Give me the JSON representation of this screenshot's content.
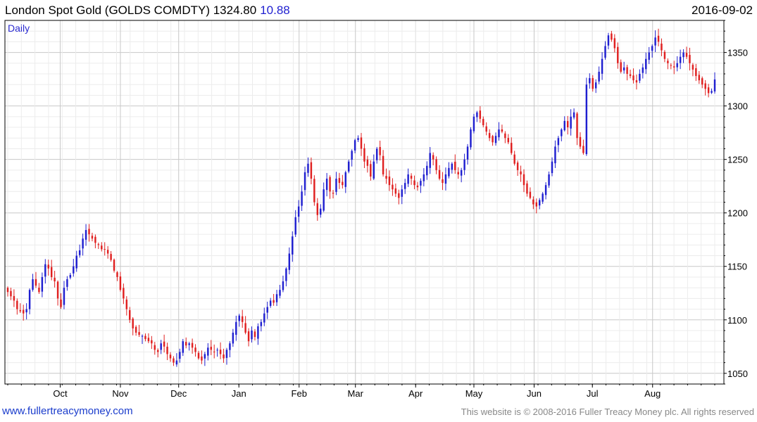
{
  "header": {
    "title": "London Spot Gold (GOLDS COMDTY) 1324.80",
    "change": "10.88",
    "date": "2016-09-02"
  },
  "footer": {
    "site": "www.fullertreacymoney.com",
    "copyright": "This website is © 2008-2016 Fuller Treacy Money plc. All rights reserved"
  },
  "colors": {
    "up": "#1f1fd0",
    "down": "#e02020",
    "grid": "#c8c8c8",
    "gridMinor": "#ececec"
  },
  "chart_data": {
    "type": "candlestick",
    "period_label": "Daily",
    "ylim": [
      1040,
      1380
    ],
    "y_ticks": [
      1050,
      1100,
      1150,
      1200,
      1250,
      1300,
      1350
    ],
    "y_tick_labels": [
      "1050",
      "1100",
      "1150",
      "1200",
      "1250",
      "1300",
      "1350"
    ],
    "x_range": [
      "2015-09-04",
      "2016-09-02"
    ],
    "x_ticks": [
      {
        "date": "2015-10-01",
        "label": "Oct"
      },
      {
        "date": "2015-11-01",
        "label": "Nov"
      },
      {
        "date": "2015-12-01",
        "label": "Dec"
      },
      {
        "date": "2016-01-01",
        "label": "Jan"
      },
      {
        "date": "2016-02-01",
        "label": "Feb"
      },
      {
        "date": "2016-03-01",
        "label": "Mar"
      },
      {
        "date": "2016-04-01",
        "label": "Apr"
      },
      {
        "date": "2016-05-01",
        "label": "May"
      },
      {
        "date": "2016-06-01",
        "label": "Jun"
      },
      {
        "date": "2016-07-01",
        "label": "Jul"
      },
      {
        "date": "2016-08-01",
        "label": "Aug"
      }
    ],
    "closes": [
      1126,
      1122,
      1118,
      1110,
      1108,
      1106,
      1110,
      1128,
      1138,
      1132,
      1126,
      1140,
      1152,
      1148,
      1140,
      1136,
      1120,
      1112,
      1130,
      1138,
      1142,
      1150,
      1160,
      1165,
      1176,
      1184,
      1180,
      1176,
      1172,
      1170,
      1166,
      1166,
      1162,
      1156,
      1146,
      1140,
      1128,
      1120,
      1110,
      1100,
      1092,
      1088,
      1086,
      1085,
      1082,
      1080,
      1078,
      1072,
      1070,
      1078,
      1075,
      1068,
      1064,
      1060,
      1062,
      1070,
      1080,
      1076,
      1078,
      1074,
      1070,
      1064,
      1062,
      1068,
      1074,
      1072,
      1070,
      1072,
      1068,
      1064,
      1072,
      1078,
      1088,
      1098,
      1104,
      1098,
      1088,
      1080,
      1090,
      1084,
      1094,
      1098,
      1106,
      1112,
      1118,
      1116,
      1124,
      1128,
      1136,
      1148,
      1162,
      1178,
      1196,
      1206,
      1220,
      1238,
      1246,
      1232,
      1210,
      1198,
      1204,
      1222,
      1232,
      1220,
      1218,
      1232,
      1228,
      1226,
      1238,
      1248,
      1258,
      1268,
      1270,
      1260,
      1248,
      1244,
      1234,
      1248,
      1260,
      1254,
      1236,
      1232,
      1226,
      1222,
      1218,
      1214,
      1222,
      1228,
      1236,
      1232,
      1226,
      1224,
      1230,
      1236,
      1244,
      1256,
      1250,
      1240,
      1232,
      1228,
      1236,
      1242,
      1246,
      1240,
      1236,
      1240,
      1250,
      1262,
      1278,
      1290,
      1294,
      1288,
      1282,
      1276,
      1270,
      1266,
      1272,
      1278,
      1276,
      1270,
      1266,
      1256,
      1246,
      1240,
      1236,
      1226,
      1218,
      1214,
      1208,
      1206,
      1212,
      1218,
      1226,
      1236,
      1248,
      1262,
      1270,
      1278,
      1286,
      1280,
      1290,
      1294,
      1270,
      1262,
      1256,
      1320,
      1326,
      1316,
      1322,
      1332,
      1344,
      1356,
      1366,
      1362,
      1354,
      1340,
      1332,
      1336,
      1330,
      1328,
      1324,
      1322,
      1330,
      1336,
      1344,
      1350,
      1356,
      1364,
      1360,
      1352,
      1344,
      1340,
      1338,
      1336,
      1340,
      1346,
      1350,
      1346,
      1340,
      1334,
      1328,
      1324,
      1320,
      1316,
      1312,
      1314,
      1324.8
    ]
  }
}
